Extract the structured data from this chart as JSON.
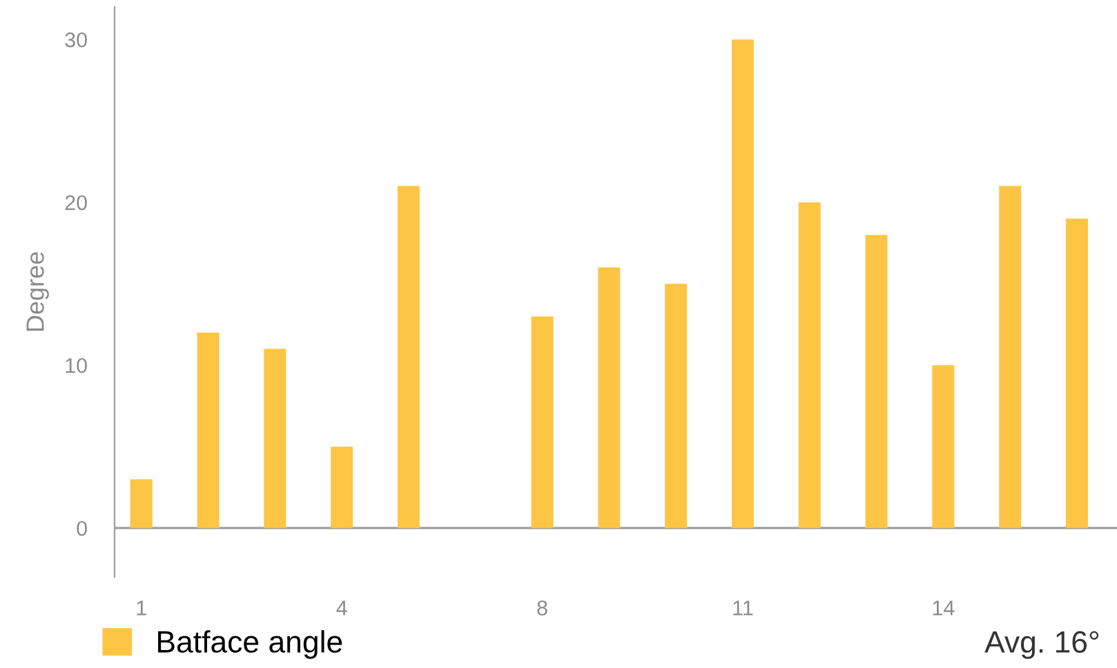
{
  "chart_data": {
    "type": "bar",
    "ylabel": "Degree",
    "categories": [
      "1",
      null,
      null,
      "4",
      null,
      null,
      "8",
      null,
      null,
      "11",
      null,
      null,
      "14",
      null,
      null
    ],
    "series": [
      {
        "name": "Batface angle",
        "color": "#fdc544",
        "values": [
          3,
          12,
          11,
          5,
          21,
          null,
          13,
          16,
          15,
          30,
          20,
          18,
          10,
          21,
          19
        ]
      }
    ],
    "ylim": [
      -3,
      32
    ],
    "yticks": [
      0,
      10,
      20,
      30
    ],
    "ref_lines": [
      {
        "axis": "y",
        "value": 0,
        "color": "#9e9e9e"
      }
    ],
    "annotations": [
      "Avg. 16°"
    ],
    "grid": false,
    "legend": "bottom left"
  }
}
